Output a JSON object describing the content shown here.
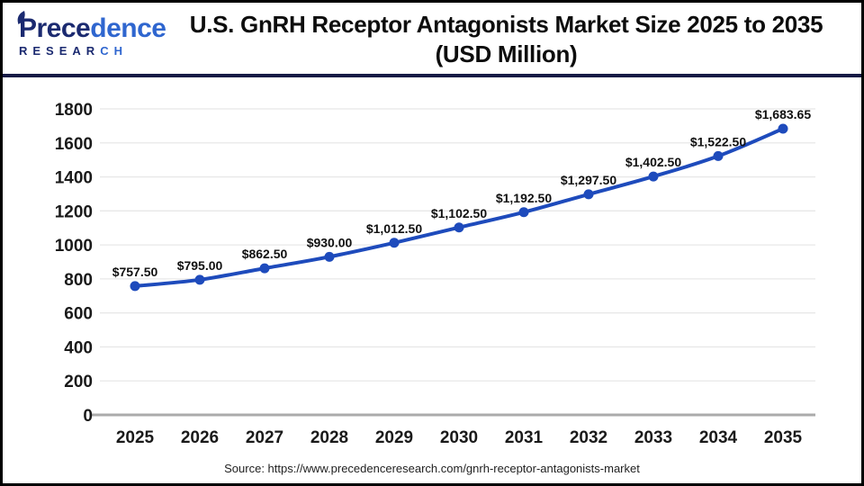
{
  "header": {
    "logo": {
      "name_dark": "Prece",
      "name_light": "dence",
      "sub_dark": "RESEAR",
      "sub_light": "CH"
    },
    "title_line1": "U.S. GnRH Receptor Antagonists Market Size 2025 to 2035",
    "title_line2": "(USD Million)"
  },
  "chart_data": {
    "type": "line",
    "title": "U.S. GnRH Receptor Antagonists Market Size 2025 to 2035 (USD Million)",
    "x": [
      "2025",
      "2026",
      "2027",
      "2028",
      "2029",
      "2030",
      "2031",
      "2032",
      "2033",
      "2034",
      "2035"
    ],
    "series": [
      {
        "name": "U.S. GnRH Receptor Antagonists Market Size (USD Million)",
        "values": [
          757.5,
          795.0,
          862.5,
          930.0,
          1012.5,
          1102.5,
          1192.5,
          1297.5,
          1402.5,
          1522.5,
          1683.65
        ]
      }
    ],
    "value_labels": [
      "$757.50",
      "$795.00",
      "$862.50",
      "$930.00",
      "$1,012.50",
      "$1,102.50",
      "$1,192.50",
      "$1,297.50",
      "$1,402.50",
      "$1,522.50",
      "$1,683.65"
    ],
    "xlabel": "",
    "ylabel": "",
    "ylim": [
      0,
      1800
    ],
    "ytick_step": 200,
    "grid": true,
    "legend": false,
    "line_color": "#1e4bbc",
    "marker": "circle"
  },
  "footer": {
    "source": "Source: https://www.precedenceresearch.com/gnrh-receptor-antagonists-market"
  },
  "colors": {
    "separator": "#161a45",
    "gridline": "#e8e8e8",
    "axis_baseline": "#ababab",
    "logo_navy": "#1b2a70",
    "logo_blue": "#2f66cf",
    "title_text": "#0d0d0d"
  }
}
